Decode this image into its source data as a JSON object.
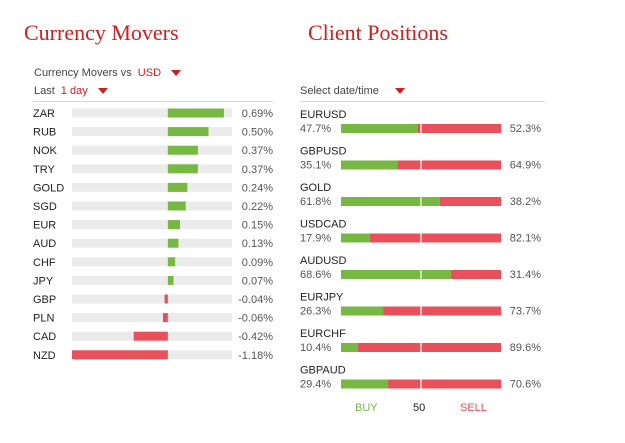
{
  "movers": {
    "title": "Currency Movers",
    "vs_label": "Currency Movers vs",
    "vs_value": "USD",
    "period_label": "Last",
    "period_value": "1 day"
  },
  "positions": {
    "title": "Client Positions",
    "select_label": "Select date/time",
    "legend": {
      "buy": "BUY",
      "mid": "50",
      "sell": "SELL"
    }
  },
  "colors": {
    "positive": "#77b843",
    "negative": "#e8505b",
    "track": "#ebebeb",
    "accent": "#cc1f1f"
  },
  "chart_data": [
    {
      "type": "bar",
      "orientation": "horizontal",
      "title": "Currency Movers",
      "categories": [
        "ZAR",
        "RUB",
        "NOK",
        "TRY",
        "GOLD",
        "SGD",
        "EUR",
        "AUD",
        "CHF",
        "JPY",
        "GBP",
        "PLN",
        "CAD",
        "NZD"
      ],
      "values": [
        0.69,
        0.5,
        0.37,
        0.37,
        0.24,
        0.22,
        0.15,
        0.13,
        0.09,
        0.07,
        -0.04,
        -0.06,
        -0.42,
        -1.18
      ],
      "value_labels": [
        "0.69%",
        "0.50%",
        "0.37%",
        "0.37%",
        "0.24%",
        "0.22%",
        "0.15%",
        "0.13%",
        "0.09%",
        "0.07%",
        "-0.04%",
        "-0.06%",
        "-0.42%",
        "-1.18%"
      ],
      "xlim": [
        -1.18,
        0.79
      ]
    },
    {
      "type": "bar",
      "orientation": "horizontal",
      "stacked": true,
      "title": "Client Positions",
      "categories": [
        "EURUSD",
        "GBPUSD",
        "GOLD",
        "USDCAD",
        "AUDUSD",
        "EURJPY",
        "EURCHF",
        "GBPAUD"
      ],
      "series": [
        {
          "name": "BUY",
          "values": [
            47.7,
            35.1,
            61.8,
            17.9,
            68.6,
            26.3,
            10.4,
            29.4
          ],
          "labels": [
            "47.7%",
            "35.1%",
            "61.8%",
            "17.9%",
            "68.6%",
            "26.3%",
            "10.4%",
            "29.4%"
          ]
        },
        {
          "name": "SELL",
          "values": [
            52.3,
            64.9,
            38.2,
            82.1,
            31.4,
            73.7,
            89.6,
            70.6
          ],
          "labels": [
            "52.3%",
            "64.9%",
            "38.2%",
            "82.1%",
            "31.4%",
            "73.7%",
            "89.6%",
            "70.6%"
          ]
        }
      ],
      "xlim": [
        0,
        100
      ],
      "reference_line": 50
    }
  ]
}
